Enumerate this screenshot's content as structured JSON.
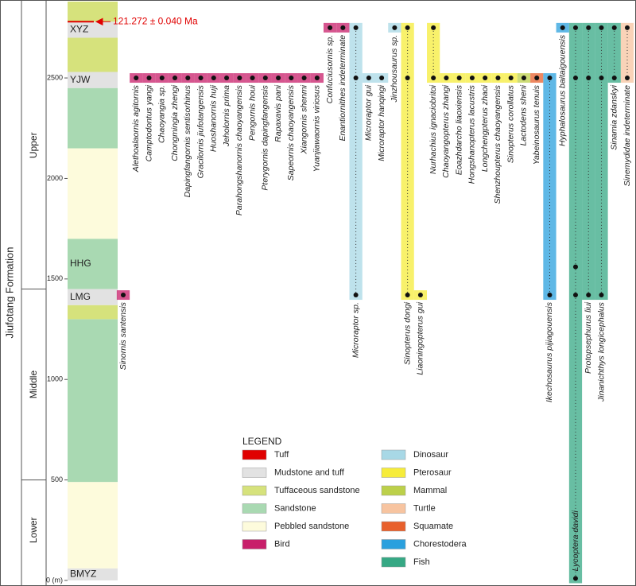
{
  "chart_data": {
    "type": "stratigraphic-range",
    "formation": "Jiufotang Formation",
    "ylim": [
      0,
      2880
    ],
    "yticks": [
      {
        "value": 0,
        "label": "0 (m)"
      },
      500,
      1000,
      1500,
      2000,
      2500
    ],
    "stages": [
      {
        "name": "Lower",
        "range": [
          0,
          500
        ]
      },
      {
        "name": "Middle",
        "range": [
          500,
          1450
        ]
      },
      {
        "name": "Upper",
        "range": [
          1450,
          2880
        ]
      }
    ],
    "layers": [
      {
        "lithology": "Mudstone and tuff",
        "range": [
          0,
          60
        ],
        "label": "BMYZ"
      },
      {
        "lithology": "Pebbled sandstone",
        "range": [
          60,
          490
        ]
      },
      {
        "lithology": "Sandstone",
        "range": [
          490,
          1300
        ]
      },
      {
        "lithology": "Tuffaceous sandstone",
        "range": [
          1300,
          1370
        ]
      },
      {
        "lithology": "Mudstone and tuff",
        "range": [
          1370,
          1450
        ],
        "label": "LMG"
      },
      {
        "lithology": "Sandstone",
        "range": [
          1450,
          1700
        ],
        "label": "HHG"
      },
      {
        "lithology": "Pebbled sandstone",
        "range": [
          1700,
          2150
        ]
      },
      {
        "lithology": "Sandstone",
        "range": [
          2150,
          2450
        ]
      },
      {
        "lithology": "Mudstone and tuff",
        "range": [
          2450,
          2530
        ],
        "label": "YJW"
      },
      {
        "lithology": "Tuffaceous sandstone",
        "range": [
          2530,
          2700
        ]
      },
      {
        "lithology": "Mudstone and tuff",
        "range": [
          2700,
          2780
        ],
        "label": "XYZ"
      },
      {
        "lithology": "Tuffaceous sandstone",
        "range": [
          2780,
          2880
        ]
      }
    ],
    "tuff_age": {
      "value": 2780,
      "label": "121.272 ± 0.040 Ma",
      "color": "#e00000"
    },
    "legend": {
      "title": "LEGEND",
      "items": [
        {
          "name": "Tuff",
          "color": "#e00000"
        },
        {
          "name": "Mudstone and tuff",
          "color": "#e2e2e2"
        },
        {
          "name": "Tuffaceous sandstone",
          "color": "#d6e27c"
        },
        {
          "name": "Sandstone",
          "color": "#a9d9b2"
        },
        {
          "name": "Pebbled sandstone",
          "color": "#fdfbdc"
        },
        {
          "name": "Bird",
          "color": "#c81e6a"
        },
        {
          "name": "Dinosaur",
          "color": "#a8d8e6"
        },
        {
          "name": "Pterosaur",
          "color": "#f6ec3a"
        },
        {
          "name": "Mammal",
          "color": "#bcd04a"
        },
        {
          "name": "Turtle",
          "color": "#f7c4a0"
        },
        {
          "name": "Squamate",
          "color": "#e8602c"
        },
        {
          "name": "Chorestodera",
          "color": "#2aa0de"
        },
        {
          "name": "Fish",
          "color": "#36a884"
        }
      ]
    },
    "taxa": [
      {
        "name": "Sinornis santensis",
        "group": "Bird",
        "occurrences": [
          1420
        ]
      },
      {
        "name": "Alethoalaornis agitornis",
        "group": "Bird",
        "occurrences": [
          2500
        ]
      },
      {
        "name": "Camptodontus yangi",
        "group": "Bird",
        "occurrences": [
          2500
        ]
      },
      {
        "name": "Chaoyangia sp.",
        "group": "Bird",
        "occurrences": [
          2500
        ]
      },
      {
        "name": "Chongmingia zhengi",
        "group": "Bird",
        "occurrences": [
          2500
        ]
      },
      {
        "name": "Dapingfangornis sentisorhinus",
        "group": "Bird",
        "occurrences": [
          2500
        ]
      },
      {
        "name": "Gracilornis jiufotangensis",
        "group": "Bird",
        "occurrences": [
          2500
        ]
      },
      {
        "name": "Huoshanornis huji",
        "group": "Bird",
        "occurrences": [
          2500
        ]
      },
      {
        "name": "Jeholornis prima",
        "group": "Bird",
        "occurrences": [
          2500
        ]
      },
      {
        "name": "Parahongshanornis chaoyangensis",
        "group": "Bird",
        "occurrences": [
          2500
        ]
      },
      {
        "name": "Pengornis houi",
        "group": "Bird",
        "occurrences": [
          2500
        ]
      },
      {
        "name": "Pterygornis dapingfangensis",
        "group": "Bird",
        "occurrences": [
          2500
        ]
      },
      {
        "name": "Rapaxavis pani",
        "group": "Bird",
        "occurrences": [
          2500
        ]
      },
      {
        "name": "Sapeornis chaoyangensis",
        "group": "Bird",
        "occurrences": [
          2500
        ]
      },
      {
        "name": "Xiangornis shenmi",
        "group": "Bird",
        "occurrences": [
          2500
        ]
      },
      {
        "name": "Yuanjiawaornis viriosus",
        "group": "Bird",
        "occurrences": [
          2500
        ]
      },
      {
        "name": "Confuciusornis sp.",
        "group": "Bird",
        "occurrences": [
          2750
        ]
      },
      {
        "name": "Enantiornithes indeterminate",
        "group": "Bird",
        "occurrences": [
          2750
        ]
      },
      {
        "name": "Microraptor sp.",
        "group": "Dinosaur",
        "occurrences": [
          1420,
          2500,
          2750
        ]
      },
      {
        "name": "Microraptor gui",
        "group": "Dinosaur",
        "occurrences": [
          2500
        ]
      },
      {
        "name": "Microraptor hanqingi",
        "group": "Dinosaur",
        "occurrences": [
          2500
        ]
      },
      {
        "name": "Jinzhousaurus sp.",
        "group": "Dinosaur",
        "occurrences": [
          2750
        ]
      },
      {
        "name": "Sinopterus dongi",
        "group": "Pterosaur",
        "occurrences": [
          1420,
          2500,
          2750
        ]
      },
      {
        "name": "Liaoningopterus gui",
        "group": "Pterosaur",
        "occurrences": [
          1420
        ]
      },
      {
        "name": "Nurhachius ignaciobritoi",
        "group": "Pterosaur",
        "occurrences": [
          2500,
          2750
        ]
      },
      {
        "name": "Chaoyangopterus zhangi",
        "group": "Pterosaur",
        "occurrences": [
          2500
        ]
      },
      {
        "name": "Eoazhdarcho liaoxiensis",
        "group": "Pterosaur",
        "occurrences": [
          2500
        ]
      },
      {
        "name": "Hongshanopterus lacustris",
        "group": "Pterosaur",
        "occurrences": [
          2500
        ]
      },
      {
        "name": "Longchengpterus zhaoi",
        "group": "Pterosaur",
        "occurrences": [
          2500
        ]
      },
      {
        "name": "Shenzhoupterus chaoyangensis",
        "group": "Pterosaur",
        "occurrences": [
          2500
        ]
      },
      {
        "name": "Sinopterus corollatus",
        "group": "Pterosaur",
        "occurrences": [
          2500
        ]
      },
      {
        "name": "Lactodens sheni",
        "group": "Mammal",
        "occurrences": [
          2500
        ]
      },
      {
        "name": "Yabeinosaurus tenuis",
        "group": "Squamate",
        "occurrences": [
          2500
        ]
      },
      {
        "name": "Ikechosaurus pijiagouensis",
        "group": "Chorestodera",
        "occurrences": [
          1420,
          2500
        ]
      },
      {
        "name": "Hyphalosaurus baitaigouensis",
        "group": "Chorestodera",
        "occurrences": [
          2750
        ]
      },
      {
        "name": "Lycoptera davidi",
        "group": "Fish",
        "occurrences": [
          10,
          1420,
          1560,
          2500,
          2750
        ]
      },
      {
        "name": "Protopsephurus liui",
        "group": "Fish",
        "occurrences": [
          1420,
          2500,
          2750
        ]
      },
      {
        "name": "Jinanichthys longicephalus",
        "group": "Fish",
        "occurrences": [
          1420,
          2500,
          2750
        ]
      },
      {
        "name": "Sinamia zdanskyi",
        "group": "Fish",
        "occurrences": [
          2500,
          2750
        ]
      },
      {
        "name": "Sinemydidae indeterminate",
        "group": "Turtle",
        "occurrences": [
          2500,
          2750
        ]
      }
    ]
  }
}
